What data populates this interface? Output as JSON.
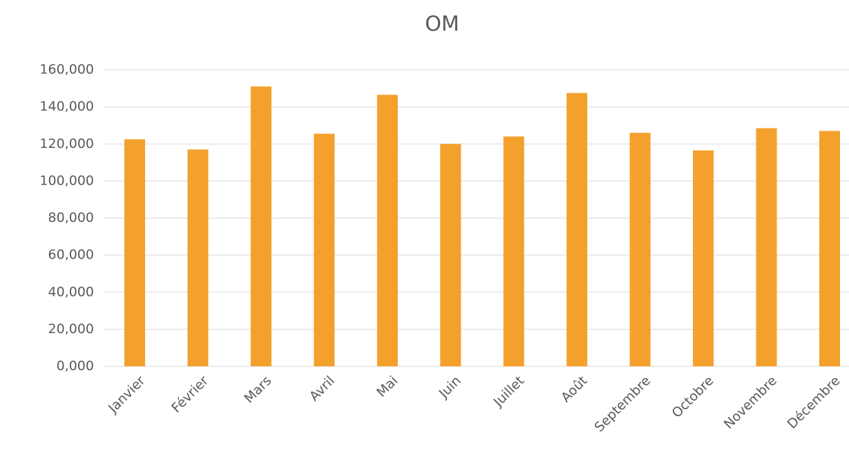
{
  "chart_data": {
    "type": "bar",
    "title": "OM",
    "categories": [
      "Janvier",
      "Février",
      "Mars",
      "Avril",
      "Mai",
      "Juin",
      "Juillet",
      "Août",
      "Septembre",
      "Octobre",
      "Novembre",
      "Décembre"
    ],
    "values": [
      122500,
      117000,
      151000,
      125500,
      146500,
      120000,
      124000,
      147500,
      126000,
      116500,
      128500,
      127000
    ],
    "color": "#f4a02c",
    "ylim": [
      0,
      160000
    ],
    "yticks": [
      {
        "value": 0,
        "label": "0,000"
      },
      {
        "value": 20000,
        "label": "20,000"
      },
      {
        "value": 40000,
        "label": "40,000"
      },
      {
        "value": 60000,
        "label": "60,000"
      },
      {
        "value": 80000,
        "label": "80,000"
      },
      {
        "value": 100000,
        "label": "100,000"
      },
      {
        "value": 120000,
        "label": "120,000"
      },
      {
        "value": 140000,
        "label": "140,000"
      },
      {
        "value": 160000,
        "label": "160,000"
      }
    ],
    "grid": true
  }
}
